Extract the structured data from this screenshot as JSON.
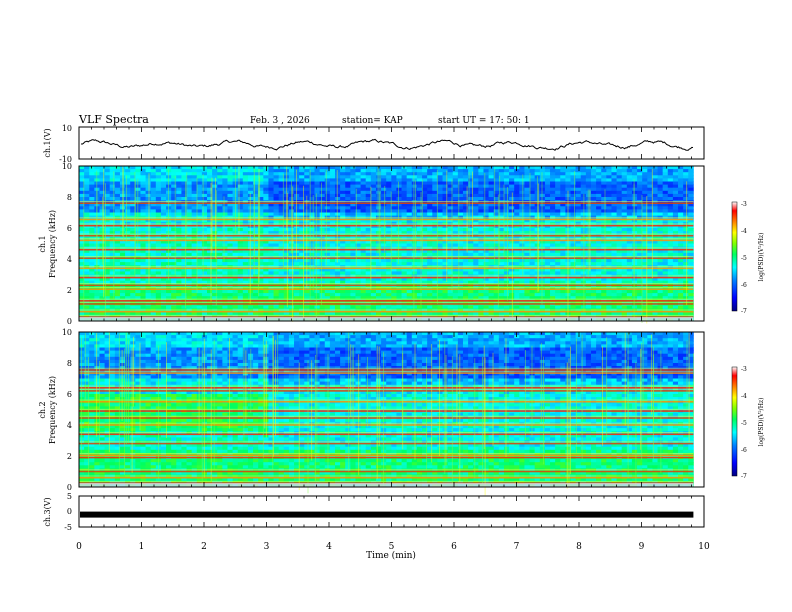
{
  "header": {
    "title": "VLF Spectra",
    "date": "Feb. 3  , 2026",
    "station": "station= KAP",
    "start": "start  UT =   17: 50: 1"
  },
  "colors": {
    "colormap": [
      "#000080",
      "#0000ff",
      "#0080ff",
      "#00ffff",
      "#00ff80",
      "#80ff00",
      "#ffff00",
      "#ff8000",
      "#ff0000",
      "#ffffff"
    ],
    "background_noise": "#00e6f0",
    "trace": "#000000",
    "cal": "#000000"
  },
  "chart_data": [
    {
      "type": "line",
      "id": "ch1-waveform",
      "ylabel": "ch.1(V)",
      "ylim": [
        -10,
        10
      ],
      "yticks": [
        "10",
        "-10"
      ],
      "description_series": "waveform amplitude, oscillating around ~-1 V with ±3 V swings"
    },
    {
      "type": "heatmap",
      "id": "ch1-spectrogram",
      "ylabel": "ch.1",
      "ylabel2": "Frequency (kHz)",
      "ylim": [
        0,
        10
      ],
      "yticks": [
        "0",
        "2",
        "4",
        "6",
        "8",
        "10"
      ],
      "xlim": [
        0,
        10
      ],
      "colorbar": {
        "label": "log(PSD)(V²/Hz)",
        "range": [
          -7,
          -3
        ],
        "ticks": [
          "-3",
          "-4",
          "-5",
          "-6",
          "-7"
        ]
      },
      "lines_khz": [
        0.25,
        0.6,
        1.1,
        1.3,
        2.05,
        2.3,
        2.8,
        3.4,
        4.05,
        4.6,
        5.2,
        5.5,
        6.15,
        6.55,
        7.6
      ],
      "end_min": 9.83
    },
    {
      "type": "heatmap",
      "id": "ch2-spectrogram",
      "ylabel": "ch.2",
      "ylabel2": "Frequency (kHz)",
      "ylim": [
        0,
        10
      ],
      "yticks": [
        "0",
        "2",
        "4",
        "6",
        "8",
        "10"
      ],
      "xlim": [
        0,
        10
      ],
      "colorbar": {
        "label": "log(PSD)(V²/Hz)",
        "range": [
          -7,
          -3
        ],
        "ticks": [
          "-3",
          "-4",
          "-5",
          "-6",
          "-7"
        ]
      },
      "lines_khz": [
        0.25,
        0.6,
        1.0,
        1.9,
        2.05,
        2.8,
        3.4,
        4.0,
        4.45,
        4.9,
        5.5,
        6.2,
        6.4,
        7.35,
        7.55
      ],
      "end_min": 9.83
    },
    {
      "type": "line",
      "id": "ch3-signal",
      "ylabel": "ch.3(V)",
      "ylim": [
        -5,
        5
      ],
      "yticks": [
        "5",
        "0",
        "-5"
      ],
      "value": -1,
      "end_min": 9.83
    }
  ],
  "xaxis": {
    "label": "Time  (min)",
    "range": [
      0,
      10
    ],
    "ticks": [
      "0",
      "1",
      "2",
      "3",
      "4",
      "5",
      "6",
      "7",
      "8",
      "9",
      "10"
    ]
  }
}
